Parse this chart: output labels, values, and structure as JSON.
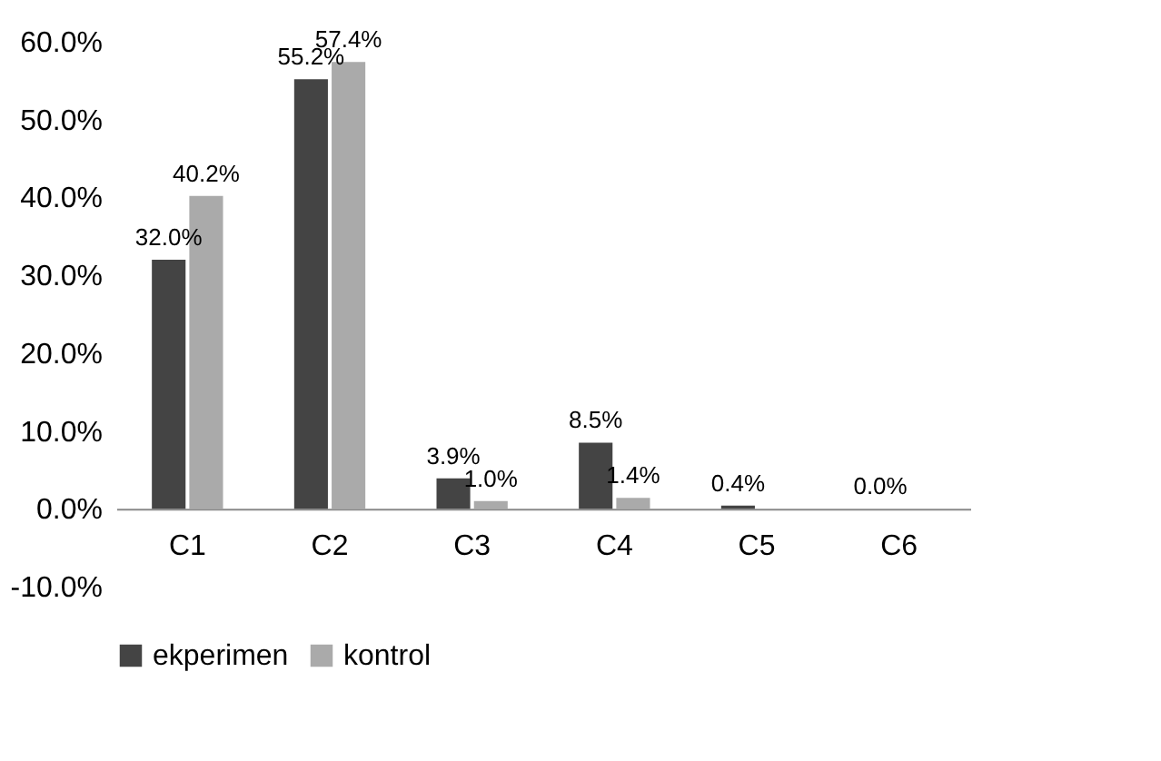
{
  "chart_data": {
    "type": "bar",
    "categories": [
      "C1",
      "C2",
      "C3",
      "C4",
      "C5",
      "C6"
    ],
    "series": [
      {
        "name": "ekperimen",
        "color": "#444444",
        "values": [
          32.0,
          55.2,
          3.9,
          8.5,
          0.4,
          0.0
        ],
        "value_labels": [
          "32.0%",
          "55.2%",
          "3.9%",
          "8.5%",
          "0.4%",
          "0.0%"
        ]
      },
      {
        "name": "kontrol",
        "color": "#aaaaaa",
        "values": [
          40.2,
          57.4,
          1.0,
          1.4,
          null,
          null
        ],
        "value_labels": [
          "40.2%",
          "57.4%",
          "1.0%",
          "1.4%",
          null,
          null
        ]
      }
    ],
    "ylim": [
      -10,
      60
    ],
    "yticks": [
      {
        "value": -10,
        "label": "-10.0%"
      },
      {
        "value": 0,
        "label": "0.0%"
      },
      {
        "value": 10,
        "label": "10.0%"
      },
      {
        "value": 20,
        "label": "20.0%"
      },
      {
        "value": 30,
        "label": "30.0%"
      },
      {
        "value": 40,
        "label": "40.0%"
      },
      {
        "value": 50,
        "label": "50.0%"
      },
      {
        "value": 60,
        "label": "60.0%"
      }
    ],
    "grid": false,
    "legend": "bottom"
  }
}
